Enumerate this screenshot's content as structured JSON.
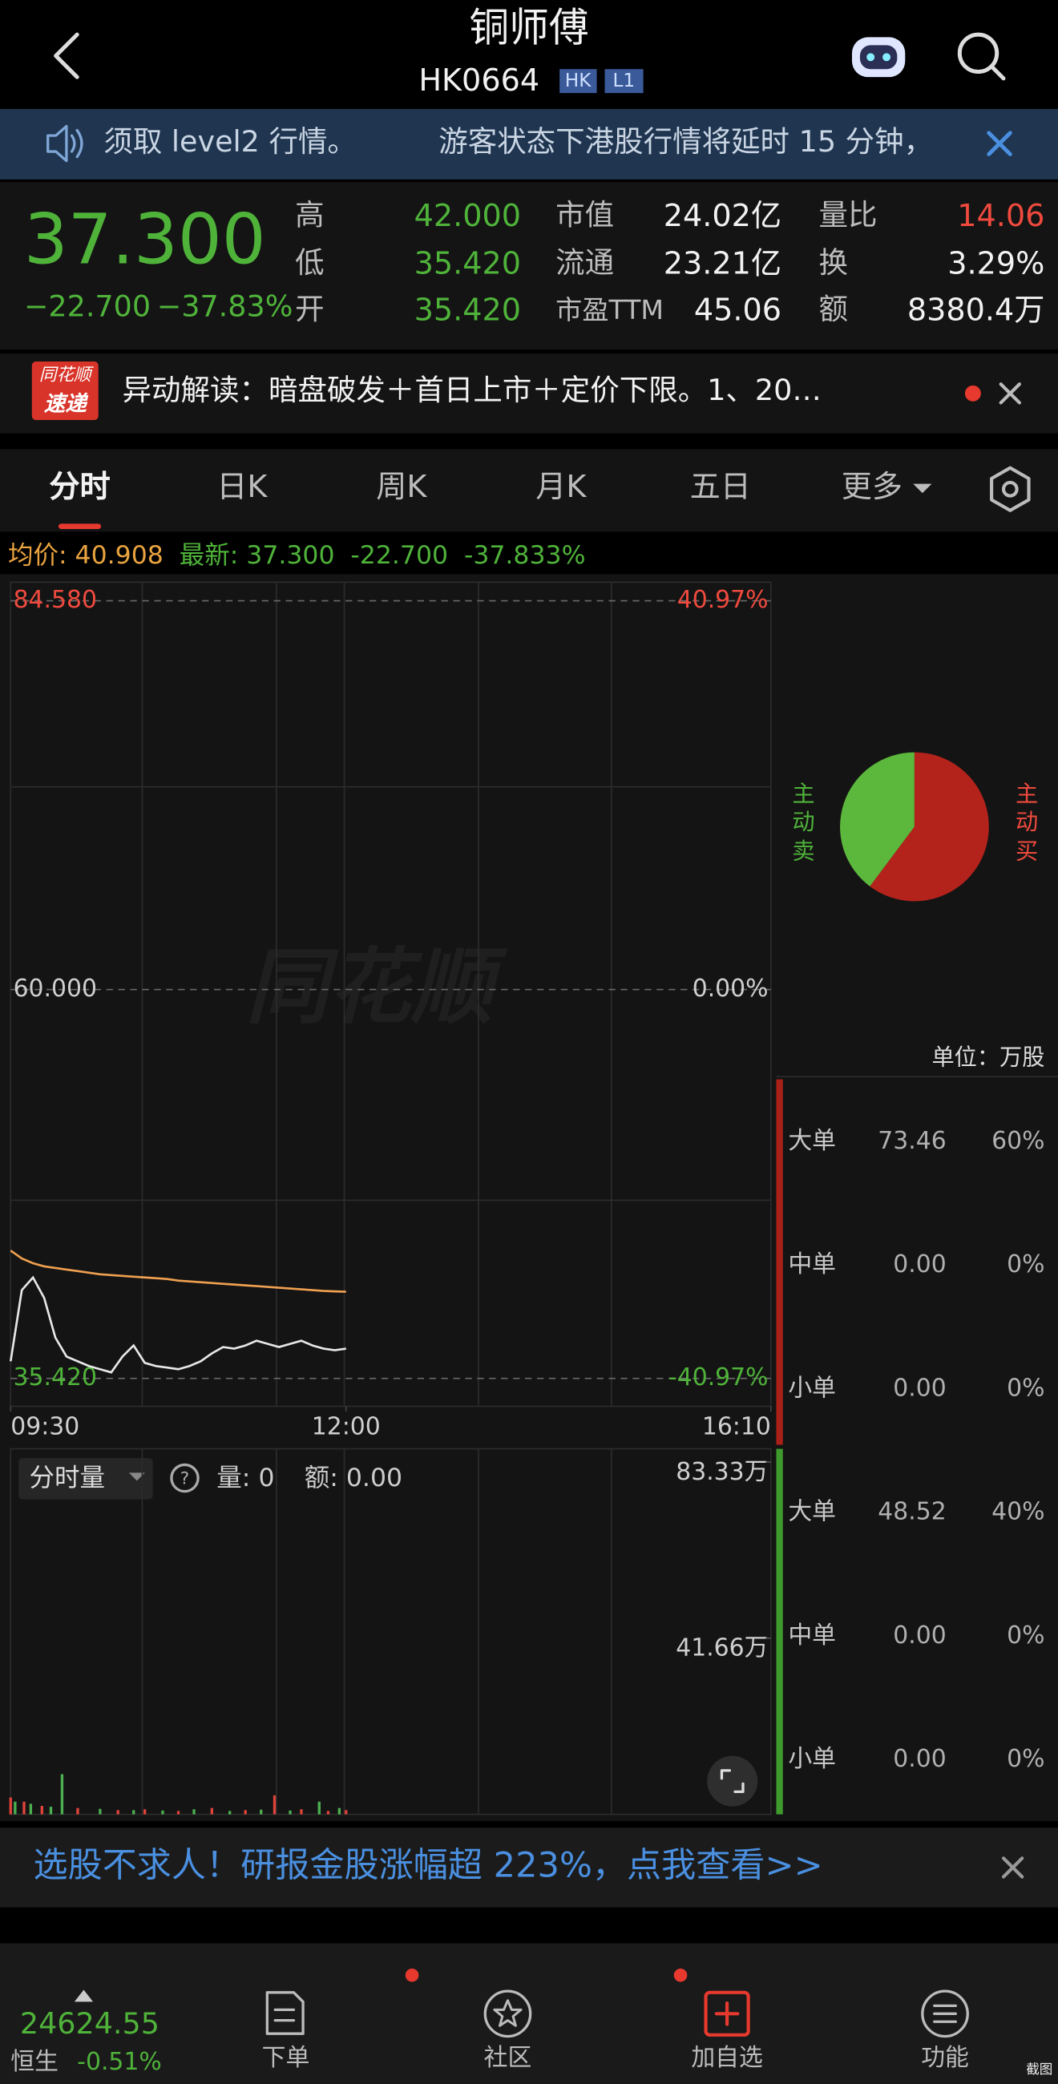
{
  "header": {
    "title": "铜师傅",
    "code": "HK0664",
    "badges": [
      "HK",
      "L1"
    ]
  },
  "notice": {
    "segments": [
      "须取 level2 行情。",
      "游客状态下港股行情将延时 15 分钟，"
    ]
  },
  "quote": {
    "price": "37.300",
    "change": "−22.700",
    "change_pct": "−37.83%",
    "fields": [
      [
        {
          "label": "高",
          "value": "42.000"
        },
        {
          "label": "低",
          "value": "35.420"
        },
        {
          "label": "开",
          "value": "35.420"
        }
      ],
      [
        {
          "label": "市值",
          "value": "24.02亿"
        },
        {
          "label": "流通",
          "value": "23.21亿"
        },
        {
          "label": "市盈TTM",
          "value": "45.06"
        }
      ],
      [
        {
          "label": "量比",
          "value": "14.06"
        },
        {
          "label": "换",
          "value": "3.29%"
        },
        {
          "label": "额",
          "value": "8380.4万"
        }
      ]
    ]
  },
  "news": {
    "badge": [
      "同花顺",
      "速递"
    ],
    "text": "异动解读：暗盘破发＋首日上市＋定价下限。1、20…"
  },
  "tabs": [
    "分时",
    "日K",
    "周K",
    "月K",
    "五日",
    "更多"
  ],
  "summary": {
    "avg_label": "均价:",
    "avg": "40.908",
    "last_label": "最新:",
    "last": "37.300",
    "change": "-22.700",
    "change_pct": "-37.833%"
  },
  "intraday": {
    "type": "line",
    "x": [
      0,
      5,
      10,
      15,
      20,
      25,
      30,
      35,
      40,
      45,
      50,
      55,
      60,
      65,
      70,
      75,
      80,
      85,
      90,
      95,
      100,
      105,
      110,
      115,
      120,
      125,
      130,
      135,
      140,
      145,
      150
    ],
    "series": [
      {
        "color": "#e8e8e8",
        "values": [
          36.5,
          41.0,
          41.8,
          40.5,
          38.0,
          36.8,
          36.5,
          36.2,
          36.0,
          35.8,
          36.8,
          37.5,
          36.4,
          36.2,
          36.1,
          36.0,
          36.2,
          36.5,
          37.0,
          37.4,
          37.3,
          37.5,
          37.8,
          37.6,
          37.4,
          37.6,
          37.8,
          37.5,
          37.3,
          37.2,
          37.3
        ]
      },
      {
        "color": "#f0a050",
        "values": [
          43.5,
          43.0,
          42.7,
          42.5,
          42.4,
          42.3,
          42.2,
          42.1,
          42.0,
          41.95,
          41.9,
          41.85,
          41.8,
          41.75,
          41.7,
          41.6,
          41.55,
          41.5,
          41.45,
          41.4,
          41.35,
          41.3,
          41.25,
          41.2,
          41.15,
          41.1,
          41.05,
          41.0,
          40.95,
          40.92,
          40.9
        ]
      }
    ],
    "xlim": [
      0,
      340
    ],
    "xticks": [
      {
        "value": 0,
        "label": "09:30"
      },
      {
        "value": 150,
        "label": "12:00"
      },
      {
        "value": 340,
        "label": "16:10"
      }
    ],
    "ylim": [
      35.42,
      84.58
    ],
    "yticks": [
      {
        "value": 84.58,
        "label": "84.580"
      },
      {
        "value": 60,
        "label": "60.000"
      },
      {
        "value": 35.42,
        "label": "35.420"
      }
    ],
    "y2lim": [
      -40.97,
      40.97
    ],
    "y2ticks": [
      {
        "value": 40.97,
        "label": "40.97%"
      },
      {
        "value": 0,
        "label": "0.00%"
      },
      {
        "value": -40.97,
        "label": "-40.97%"
      }
    ]
  },
  "watermark": "同花顺",
  "volume": {
    "type": "bar",
    "xlim": [
      0,
      340
    ],
    "ylim": [
      0,
      83.33
    ],
    "yticks": [
      {
        "value": 83.33,
        "label": "83.33万"
      },
      {
        "value": 41.66,
        "label": "41.66万"
      }
    ],
    "up": {
      "color": "#e0433a",
      "x": [
        0,
        6,
        14,
        30,
        48,
        60,
        75,
        90,
        105,
        118,
        130,
        142,
        150
      ],
      "values": [
        4.0,
        3.0,
        2.0,
        1.5,
        1.0,
        1.2,
        0.8,
        1.5,
        1.0,
        4.5,
        1.2,
        0.8,
        1.0
      ]
    },
    "down": {
      "color": "#4caf50",
      "x": [
        2,
        9,
        18,
        23,
        40,
        55,
        68,
        82,
        98,
        112,
        125,
        138,
        147
      ],
      "values": [
        3.0,
        2.5,
        1.8,
        9.5,
        1.3,
        1.0,
        0.9,
        1.2,
        0.8,
        1.1,
        0.9,
        3.0,
        1.5
      ]
    }
  },
  "volume_toolbar": {
    "selector": "分时量",
    "volume": "量: 0",
    "amount": "额: 0.00"
  },
  "flow": {
    "unit": "单位：万股",
    "pie": {
      "type": "pie",
      "labels": [
        "主动卖",
        "主动买"
      ],
      "values": [
        48.52,
        73.46
      ],
      "colors": [
        "#5cb83c",
        "#b3231b"
      ]
    },
    "rows": [
      [
        "大单",
        "73.46",
        "60%"
      ],
      [
        "中单",
        "0.00",
        "0%"
      ],
      [
        "小单",
        "0.00",
        "0%"
      ],
      [
        "大单",
        "48.52",
        "40%"
      ],
      [
        "中单",
        "0.00",
        "0%"
      ],
      [
        "小单",
        "0.00",
        "0%"
      ]
    ]
  },
  "banner": {
    "text": "选股不求人！研报金股涨幅超 223%，点我查看>>"
  },
  "nav": {
    "index_value": "24624.55",
    "index_name": "恒生",
    "index_change": "-0.51%",
    "items": [
      "下单",
      "社区",
      "加自选",
      "功能"
    ],
    "screenshot": "截图"
  }
}
